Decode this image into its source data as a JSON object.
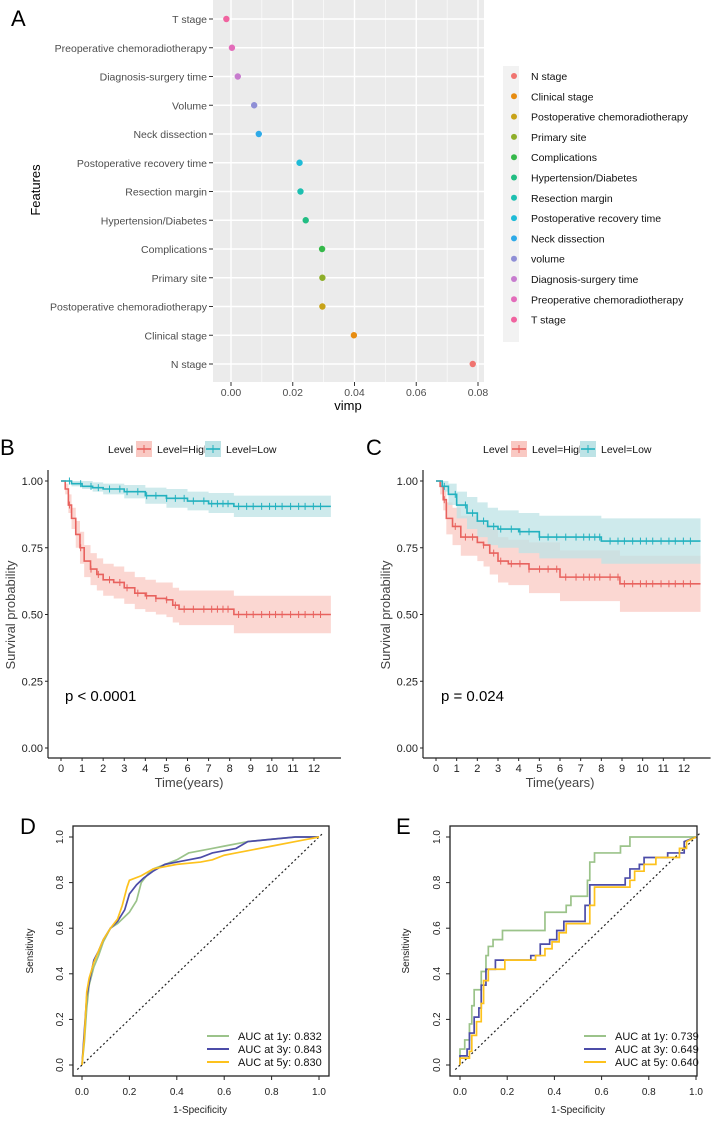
{
  "figure": {
    "panel_letters": [
      "A",
      "B",
      "C",
      "D",
      "E"
    ]
  },
  "chart_data": [
    {
      "panel": "A",
      "type": "scatter",
      "title": "",
      "xlabel": "vimp",
      "ylabel": "Features",
      "xlim": [
        -0.005,
        0.081
      ],
      "xticks": [
        0.0,
        0.02,
        0.04,
        0.06,
        0.08
      ],
      "xtick_labels": [
        "0.00",
        "0.02",
        "0.04",
        "0.06",
        "0.08"
      ],
      "grid": true,
      "legend_position": "right",
      "points": [
        {
          "feature": "T stage",
          "vimp": -0.0015,
          "color": "#f0639f"
        },
        {
          "feature": "Preoperative chemoradiotherapy",
          "vimp": 0.0003,
          "color": "#e36cba"
        },
        {
          "feature": "Diagnosis-surgery time",
          "vimp": 0.0022,
          "color": "#c77cce"
        },
        {
          "feature": "Volume",
          "vimp": 0.0075,
          "color": "#8f8fd6"
        },
        {
          "feature": "Neck dissection",
          "vimp": 0.009,
          "color": "#2eaae8"
        },
        {
          "feature": "Postoperative recovery time",
          "vimp": 0.0222,
          "color": "#1fbbd7"
        },
        {
          "feature": "Resection margin",
          "vimp": 0.0225,
          "color": "#1dbfb0"
        },
        {
          "feature": "Hypertension/Diabetes",
          "vimp": 0.0242,
          "color": "#22bd83"
        },
        {
          "feature": "Complications",
          "vimp": 0.0295,
          "color": "#35b84a"
        },
        {
          "feature": "Primary site",
          "vimp": 0.0296,
          "color": "#8eae2a"
        },
        {
          "feature": "Postoperative chemoradiotherapy",
          "vimp": 0.0296,
          "color": "#c8a319"
        },
        {
          "feature": "Clinical stage",
          "vimp": 0.0398,
          "color": "#e78c10"
        },
        {
          "feature": "N stage",
          "vimp": 0.0783,
          "color": "#f07470"
        }
      ],
      "legend": [
        {
          "label": "N stage",
          "color": "#f07470"
        },
        {
          "label": "Clinical stage",
          "color": "#e78c10"
        },
        {
          "label": "Postoperative chemoradiotherapy",
          "color": "#c8a319"
        },
        {
          "label": "Primary site",
          "color": "#8eae2a"
        },
        {
          "label": "Complications",
          "color": "#35b84a"
        },
        {
          "label": "Hypertension/Diabetes",
          "color": "#22bd83"
        },
        {
          "label": "Resection margin",
          "color": "#1dbfb0"
        },
        {
          "label": "Postoperative recovery time",
          "color": "#1fbbd7"
        },
        {
          "label": "Neck dissection",
          "color": "#2eaae8"
        },
        {
          "label": "volume",
          "color": "#8f8fd6"
        },
        {
          "label": "Diagnosis-surgery time",
          "color": "#c77cce"
        },
        {
          "label": "Preoperative chemoradiotherapy",
          "color": "#e36cba"
        },
        {
          "label": "T stage",
          "color": "#f0639f"
        }
      ]
    },
    {
      "panel": "B",
      "type": "line",
      "title": "",
      "xlabel": "Time(years)",
      "ylabel": "Survival probability",
      "xlim": [
        0,
        13
      ],
      "ylim": [
        0,
        1
      ],
      "xticks": [
        0,
        1,
        2,
        3,
        4,
        5,
        6,
        7,
        8,
        9,
        10,
        11,
        12
      ],
      "yticks": [
        0.0,
        0.25,
        0.5,
        0.75,
        1.0
      ],
      "ytick_labels": [
        "0.00",
        "0.25",
        "0.50",
        "0.75",
        "1.00"
      ],
      "annotation": "p < 0.0001",
      "legend_title": "Level",
      "legend_position": "top",
      "series": [
        {
          "name": "Level=High",
          "color": "#e8625e",
          "band_color": "#f9c9c3",
          "x": [
            0,
            0.2,
            0.35,
            0.5,
            0.7,
            0.9,
            1.1,
            1.4,
            1.7,
            2.0,
            2.5,
            3.0,
            3.5,
            4.0,
            4.5,
            5.0,
            5.3,
            5.6,
            8.2,
            12.8
          ],
          "y": [
            1.0,
            0.97,
            0.91,
            0.86,
            0.8,
            0.75,
            0.7,
            0.67,
            0.65,
            0.63,
            0.62,
            0.6,
            0.58,
            0.57,
            0.56,
            0.555,
            0.535,
            0.52,
            0.5,
            0.5
          ],
          "lower": [
            1.0,
            0.95,
            0.88,
            0.82,
            0.75,
            0.69,
            0.64,
            0.61,
            0.59,
            0.57,
            0.56,
            0.54,
            0.52,
            0.51,
            0.5,
            0.49,
            0.47,
            0.46,
            0.43,
            0.43
          ],
          "upper": [
            1.0,
            0.99,
            0.95,
            0.9,
            0.85,
            0.81,
            0.76,
            0.73,
            0.71,
            0.69,
            0.68,
            0.66,
            0.64,
            0.63,
            0.62,
            0.62,
            0.6,
            0.59,
            0.57,
            0.57
          ]
        },
        {
          "name": "Level=Low",
          "color": "#22b1bf",
          "band_color": "#bde3e6",
          "x": [
            0,
            0.5,
            1.0,
            1.5,
            2.0,
            3.0,
            4.0,
            5.0,
            6.0,
            7.0,
            8.2,
            12.8
          ],
          "y": [
            1.0,
            0.99,
            0.98,
            0.975,
            0.97,
            0.96,
            0.945,
            0.935,
            0.925,
            0.915,
            0.905,
            0.905
          ],
          "lower": [
            1.0,
            0.98,
            0.97,
            0.96,
            0.95,
            0.935,
            0.915,
            0.9,
            0.89,
            0.88,
            0.865,
            0.865
          ],
          "upper": [
            1.0,
            1.0,
            1.0,
            0.995,
            0.99,
            0.985,
            0.975,
            0.97,
            0.96,
            0.955,
            0.945,
            0.945
          ]
        }
      ]
    },
    {
      "panel": "C",
      "type": "line",
      "title": "",
      "xlabel": "Time(years)",
      "ylabel": "Survival probability",
      "xlim": [
        0,
        13
      ],
      "ylim": [
        0,
        1
      ],
      "xticks": [
        0,
        1,
        2,
        3,
        4,
        5,
        6,
        7,
        8,
        9,
        10,
        11,
        12
      ],
      "yticks": [
        0.0,
        0.25,
        0.5,
        0.75,
        1.0
      ],
      "ytick_labels": [
        "0.00",
        "0.25",
        "0.50",
        "0.75",
        "1.00"
      ],
      "annotation": "p = 0.024",
      "legend_title": "Level",
      "legend_position": "top",
      "series": [
        {
          "name": "Level=High",
          "color": "#e8625e",
          "band_color": "#f9c9c3",
          "x": [
            0,
            0.2,
            0.35,
            0.5,
            0.8,
            1.2,
            2.0,
            2.3,
            2.6,
            3.0,
            3.5,
            4.5,
            6.0,
            8.9,
            12.8
          ],
          "y": [
            1.0,
            0.98,
            0.93,
            0.86,
            0.83,
            0.79,
            0.77,
            0.76,
            0.73,
            0.7,
            0.69,
            0.67,
            0.64,
            0.615,
            0.615
          ],
          "lower": [
            1.0,
            0.95,
            0.89,
            0.8,
            0.76,
            0.72,
            0.7,
            0.68,
            0.65,
            0.62,
            0.61,
            0.58,
            0.55,
            0.51,
            0.51
          ],
          "upper": [
            1.0,
            1.0,
            0.97,
            0.92,
            0.9,
            0.87,
            0.85,
            0.84,
            0.82,
            0.79,
            0.78,
            0.77,
            0.74,
            0.72,
            0.72
          ]
        },
        {
          "name": "Level=Low",
          "color": "#22b1bf",
          "band_color": "#bde3e6",
          "x": [
            0,
            0.3,
            0.6,
            1.0,
            1.5,
            2.0,
            2.5,
            3.0,
            4.0,
            5.0,
            6.0,
            8.0,
            12.8
          ],
          "y": [
            1.0,
            0.98,
            0.95,
            0.91,
            0.88,
            0.85,
            0.83,
            0.82,
            0.81,
            0.79,
            0.79,
            0.775,
            0.775
          ],
          "lower": [
            1.0,
            0.96,
            0.91,
            0.86,
            0.82,
            0.79,
            0.76,
            0.75,
            0.73,
            0.71,
            0.71,
            0.69,
            0.69
          ],
          "upper": [
            1.0,
            1.0,
            0.99,
            0.96,
            0.94,
            0.92,
            0.9,
            0.89,
            0.88,
            0.87,
            0.87,
            0.86,
            0.86
          ]
        }
      ]
    },
    {
      "panel": "D",
      "type": "line",
      "title": "",
      "xlabel": "1-Specificity",
      "ylabel": "Sensitivity",
      "xlim": [
        0,
        1
      ],
      "ylim": [
        0,
        1
      ],
      "xticks": [
        0.0,
        0.2,
        0.4,
        0.6,
        0.8,
        1.0
      ],
      "xtick_labels": [
        "0.0",
        "0.2",
        "0.4",
        "0.6",
        "0.8",
        "1.0"
      ],
      "yticks": [
        0.0,
        0.2,
        0.4,
        0.6,
        0.8,
        1.0
      ],
      "ytick_labels": [
        "0.0",
        "0.2",
        "0.4",
        "0.6",
        "0.8",
        "1.0"
      ],
      "reference_line": "diagonal",
      "legend_position": "bottom-right",
      "series": [
        {
          "name": "AUC at 1y: 0.832",
          "color": "#9bc38a",
          "x": [
            0,
            0.01,
            0.02,
            0.03,
            0.05,
            0.07,
            0.09,
            0.12,
            0.15,
            0.18,
            0.2,
            0.23,
            0.25,
            0.28,
            0.3,
            0.35,
            0.4,
            0.45,
            0.5,
            0.55,
            0.6,
            0.7,
            0.8,
            0.9,
            1.0
          ],
          "y": [
            0,
            0.1,
            0.25,
            0.35,
            0.43,
            0.48,
            0.54,
            0.6,
            0.62,
            0.65,
            0.67,
            0.72,
            0.8,
            0.84,
            0.86,
            0.88,
            0.9,
            0.93,
            0.94,
            0.95,
            0.96,
            0.98,
            0.99,
            1.0,
            1.0
          ]
        },
        {
          "name": "AUC at 3y: 0.843",
          "color": "#4c4ca8",
          "x": [
            0,
            0.01,
            0.02,
            0.03,
            0.05,
            0.07,
            0.09,
            0.12,
            0.15,
            0.18,
            0.2,
            0.23,
            0.26,
            0.3,
            0.35,
            0.4,
            0.45,
            0.5,
            0.55,
            0.6,
            0.65,
            0.7,
            0.8,
            0.9,
            1.0
          ],
          "y": [
            0,
            0.15,
            0.3,
            0.36,
            0.46,
            0.5,
            0.55,
            0.6,
            0.63,
            0.68,
            0.75,
            0.79,
            0.82,
            0.85,
            0.88,
            0.89,
            0.9,
            0.91,
            0.93,
            0.94,
            0.95,
            0.98,
            0.99,
            1.0,
            1.0
          ]
        },
        {
          "name": "AUC at 5y: 0.830",
          "color": "#fdc21d",
          "x": [
            0,
            0.01,
            0.02,
            0.03,
            0.05,
            0.07,
            0.09,
            0.12,
            0.15,
            0.17,
            0.19,
            0.2,
            0.25,
            0.3,
            0.35,
            0.4,
            0.5,
            0.55,
            0.6,
            0.65,
            0.7,
            0.8,
            0.9,
            0.95,
            1.0
          ],
          "y": [
            0,
            0.12,
            0.32,
            0.38,
            0.45,
            0.5,
            0.55,
            0.6,
            0.64,
            0.7,
            0.78,
            0.81,
            0.83,
            0.86,
            0.87,
            0.88,
            0.89,
            0.9,
            0.92,
            0.93,
            0.94,
            0.96,
            0.98,
            0.99,
            1.0
          ]
        }
      ]
    },
    {
      "panel": "E",
      "type": "line",
      "title": "",
      "xlabel": "1-Specificity",
      "ylabel": "Sensitivity",
      "xlim": [
        0,
        1
      ],
      "ylim": [
        0,
        1
      ],
      "xticks": [
        0.0,
        0.2,
        0.4,
        0.6,
        0.8,
        1.0
      ],
      "xtick_labels": [
        "0.0",
        "0.2",
        "0.4",
        "0.6",
        "0.8",
        "1.0"
      ],
      "yticks": [
        0.0,
        0.2,
        0.4,
        0.6,
        0.8,
        1.0
      ],
      "ytick_labels": [
        "0.0",
        "0.2",
        "0.4",
        "0.6",
        "0.8",
        "1.0"
      ],
      "reference_line": "diagonal",
      "legend_position": "bottom-right",
      "series": [
        {
          "name": "AUC at 1y: 0.739",
          "color": "#9bc38a",
          "x": [
            0,
            0.0,
            0.02,
            0.02,
            0.04,
            0.04,
            0.05,
            0.05,
            0.06,
            0.06,
            0.09,
            0.09,
            0.11,
            0.11,
            0.12,
            0.12,
            0.14,
            0.14,
            0.18,
            0.18,
            0.36,
            0.36,
            0.45,
            0.45,
            0.47,
            0.47,
            0.54,
            0.54,
            0.55,
            0.55,
            0.57,
            0.57,
            0.68,
            0.68,
            0.72,
            0.72,
            1.0
          ],
          "y": [
            0,
            0.07,
            0.07,
            0.11,
            0.11,
            0.18,
            0.18,
            0.26,
            0.26,
            0.33,
            0.33,
            0.41,
            0.41,
            0.48,
            0.48,
            0.52,
            0.52,
            0.55,
            0.55,
            0.59,
            0.59,
            0.67,
            0.67,
            0.7,
            0.7,
            0.74,
            0.74,
            0.81,
            0.81,
            0.89,
            0.89,
            0.93,
            0.93,
            0.96,
            0.96,
            1.0,
            1.0
          ]
        },
        {
          "name": "AUC at 3y: 0.649",
          "color": "#4c4ca8",
          "x": [
            0,
            0.0,
            0.03,
            0.03,
            0.04,
            0.04,
            0.06,
            0.06,
            0.08,
            0.08,
            0.09,
            0.09,
            0.11,
            0.11,
            0.15,
            0.15,
            0.3,
            0.3,
            0.34,
            0.34,
            0.38,
            0.38,
            0.41,
            0.41,
            0.44,
            0.44,
            0.53,
            0.53,
            0.55,
            0.55,
            0.7,
            0.7,
            0.72,
            0.72,
            0.76,
            0.76,
            0.78,
            0.78,
            0.88,
            0.88,
            0.95,
            0.95,
            1.0
          ],
          "y": [
            0,
            0.04,
            0.04,
            0.07,
            0.07,
            0.14,
            0.14,
            0.21,
            0.21,
            0.25,
            0.25,
            0.35,
            0.35,
            0.42,
            0.42,
            0.46,
            0.46,
            0.48,
            0.48,
            0.53,
            0.53,
            0.55,
            0.55,
            0.59,
            0.59,
            0.63,
            0.63,
            0.7,
            0.7,
            0.79,
            0.79,
            0.82,
            0.82,
            0.86,
            0.86,
            0.88,
            0.88,
            0.91,
            0.91,
            0.93,
            0.93,
            0.98,
            1.0
          ]
        },
        {
          "name": "AUC at 5y: 0.640",
          "color": "#fdc21d",
          "x": [
            0,
            0.0,
            0.04,
            0.04,
            0.05,
            0.05,
            0.07,
            0.07,
            0.09,
            0.09,
            0.1,
            0.1,
            0.12,
            0.12,
            0.19,
            0.19,
            0.32,
            0.32,
            0.36,
            0.36,
            0.39,
            0.39,
            0.42,
            0.42,
            0.45,
            0.45,
            0.55,
            0.55,
            0.57,
            0.57,
            0.72,
            0.72,
            0.74,
            0.74,
            0.78,
            0.78,
            0.83,
            0.83,
            0.93,
            0.93,
            0.96,
            0.96,
            1.0
          ],
          "y": [
            0,
            0.03,
            0.03,
            0.06,
            0.06,
            0.13,
            0.13,
            0.19,
            0.19,
            0.27,
            0.27,
            0.37,
            0.37,
            0.42,
            0.42,
            0.46,
            0.46,
            0.48,
            0.48,
            0.51,
            0.51,
            0.54,
            0.54,
            0.58,
            0.58,
            0.62,
            0.62,
            0.7,
            0.7,
            0.78,
            0.78,
            0.81,
            0.81,
            0.85,
            0.85,
            0.88,
            0.88,
            0.91,
            0.91,
            0.95,
            0.95,
            0.98,
            1.0
          ]
        }
      ]
    }
  ]
}
